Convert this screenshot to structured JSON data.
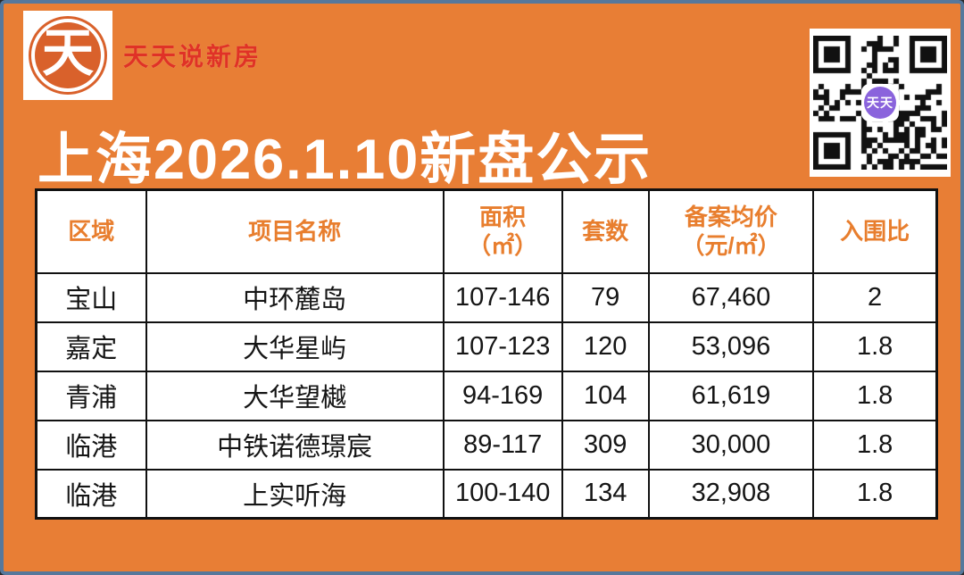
{
  "brand": {
    "logo_glyph": "天",
    "name": "天天说新房"
  },
  "qr": {
    "center_label": "天天"
  },
  "title": "上海2026.1.10新盘公示",
  "table": {
    "header_keys": [
      "region",
      "project",
      "area",
      "units",
      "price",
      "ratio"
    ],
    "headers": [
      {
        "label": "区域",
        "sub": ""
      },
      {
        "label": "项目名称",
        "sub": ""
      },
      {
        "label": "面积",
        "sub": "（㎡）"
      },
      {
        "label": "套数",
        "sub": ""
      },
      {
        "label": "备案均价",
        "sub": "（元/㎡）"
      },
      {
        "label": "入围比",
        "sub": ""
      }
    ],
    "rows": [
      [
        "宝山",
        "中环麓岛",
        "107-146",
        "79",
        "67,460",
        "2"
      ],
      [
        "嘉定",
        "大华星屿",
        "107-123",
        "120",
        "53,096",
        "1.8"
      ],
      [
        "青浦",
        "大华望樾",
        "94-169",
        "104",
        "61,619",
        "1.8"
      ],
      [
        "临港",
        "中铁诺德璟宸",
        "89-117",
        "309",
        "30,000",
        "1.8"
      ],
      [
        "临港",
        "上实听海",
        "100-140",
        "134",
        "32,908",
        "1.8"
      ]
    ]
  },
  "colors": {
    "background_orange": "#e87e35",
    "frame_blue": "#56789c",
    "brand_red": "#e03226",
    "logo_orange": "#d9612b",
    "header_orange": "#e87e2e",
    "qr_badge_purple": "#8a63dc",
    "table_border_black": "#111111",
    "title_white": "#ffffff"
  }
}
